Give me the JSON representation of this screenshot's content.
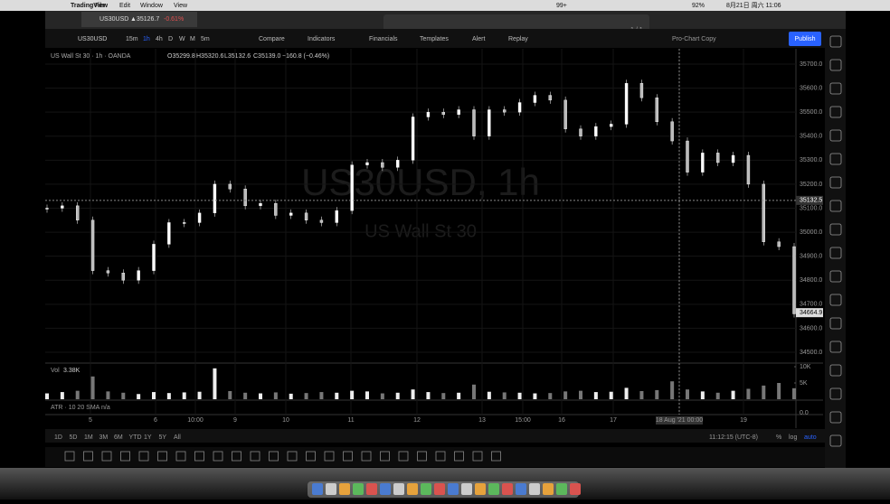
{
  "menubar": {
    "app": "TradingView",
    "menus": [
      "File",
      "Edit",
      "Window",
      "View"
    ],
    "badge": "99+",
    "battery": "92%",
    "clock": "8月21日 周六 11:06"
  },
  "tab": {
    "title": "US30USD",
    "price": "▲35126.7",
    "change": "-0.61%"
  },
  "toolbar": {
    "symbol": "US30USD",
    "intervals": [
      "15m",
      "1h",
      "4h",
      "D",
      "W",
      "M",
      "5m"
    ],
    "items": [
      "Compare",
      "Indicators",
      "Financials",
      "Templates",
      "Alert",
      "Replay"
    ],
    "layout": "Pro-Chart Copy",
    "publish": "Publish",
    "page": "1 / 1"
  },
  "chart_data": {
    "type": "candlestick",
    "title": "US Wall St 30 · 1h · OANDA",
    "ohlc": [
      "O35299.8",
      "H35320.6",
      "L35132.6",
      "C35139.0",
      "−160.8 (−0.46%)"
    ],
    "watermark": "US30USD, 1h",
    "watermark_sub": "US Wall St 30",
    "close": [
      35100,
      35110,
      35050,
      34840,
      34830,
      34800,
      34840,
      34950,
      35040,
      35040,
      35080,
      35200,
      35180,
      35110,
      35120,
      35070,
      35080,
      35050,
      35040,
      35090,
      35280,
      35290,
      35270,
      35300,
      35480,
      35500,
      35490,
      35510,
      35400,
      35510,
      35500,
      35540,
      35570,
      35550,
      35430,
      35400,
      35440,
      35450,
      35620,
      35560,
      35460,
      35380,
      35250,
      35330,
      35290,
      35320,
      35200,
      34960,
      34940,
      34660
    ],
    "ylim": [
      34500,
      35700
    ],
    "yticks": [
      {
        "value": 35700,
        "label": "35700.0"
      },
      {
        "value": 35600,
        "label": "35600.0"
      },
      {
        "value": 35500,
        "label": "35500.0"
      },
      {
        "value": 35400,
        "label": "35400.0"
      },
      {
        "value": 35300,
        "label": "35300.0"
      },
      {
        "value": 35200,
        "label": "35200.0"
      },
      {
        "value": 35100,
        "label": "35100.0"
      },
      {
        "value": 35000,
        "label": "35000.0"
      },
      {
        "value": 34900,
        "label": "34900.0"
      },
      {
        "value": 34800,
        "label": "34800.0"
      },
      {
        "value": 34700,
        "label": "34700.0"
      },
      {
        "value": 34600,
        "label": "34600.0"
      },
      {
        "value": 34500,
        "label": "34500.0"
      }
    ],
    "crosshair": {
      "value": 35132.5,
      "label": "35132.5"
    },
    "last": {
      "value": 34664.9,
      "label": "34664.9"
    },
    "volume_label": "Vol",
    "volume_last": "3.38K",
    "volume": [
      1800,
      2200,
      2600,
      7000,
      2400,
      2000,
      1600,
      2200,
      1900,
      2100,
      2300,
      9500,
      2500,
      2000,
      1800,
      2100,
      1700,
      1900,
      2200,
      2000,
      2600,
      2400,
      1800,
      2000,
      3000,
      2200,
      1900,
      2000,
      4500,
      2300,
      2100,
      2000,
      1800,
      1900,
      2400,
      2600,
      2200,
      2300,
      3500,
      2500,
      2800,
      5500,
      3000,
      2400,
      2000,
      2600,
      3200,
      4200,
      5000,
      3380
    ],
    "vlim": [
      0,
      10000
    ],
    "vticks": [
      {
        "value": 10000,
        "label": "10K"
      },
      {
        "value": 5000,
        "label": "5K"
      }
    ],
    "atr": "ATR · 10 20 SMA",
    "atr_value": "n/a",
    "atr_tick": "0.0",
    "time_labels": [
      "5",
      "6",
      "10:00",
      "9",
      "10",
      "11",
      "12",
      "13",
      "15:00",
      "16",
      "17",
      "18 Aug '21  00:00",
      "19"
    ]
  },
  "bottombar": {
    "ranges": [
      "1D",
      "5D",
      "1M",
      "3M",
      "6M",
      "YTD",
      "1Y",
      "5Y",
      "All"
    ],
    "clock": "11:12:15 (UTC-8)",
    "pct": "%",
    "log": "log",
    "auto": "auto"
  }
}
